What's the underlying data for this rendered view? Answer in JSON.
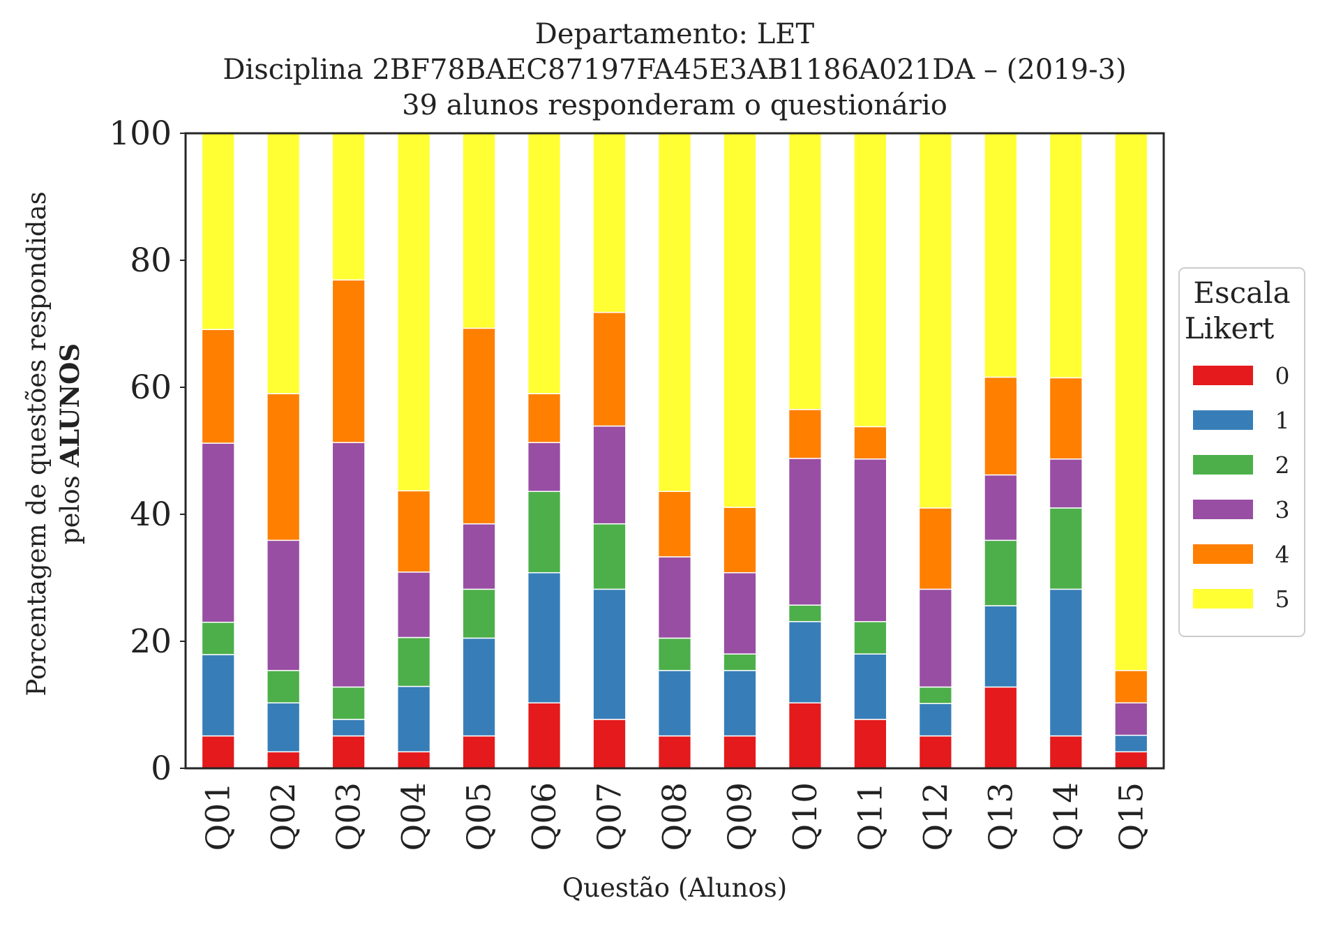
{
  "chart_data": {
    "type": "bar",
    "stacked": true,
    "title_lines": [
      "Departamento: LET",
      "Disciplina 2BF78BAEC87197FA45E3AB1186A021DA – (2019-3)",
      "39 alunos responderam o questionário"
    ],
    "xlabel": "Questão (Alunos)",
    "ylabel_line1": "Porcentagem de questões respondidas",
    "ylabel_line2_prefix": "pelos ",
    "ylabel_line2_bold": "ALUNOS",
    "ylim": [
      0,
      100
    ],
    "yticks": [
      "0",
      "20",
      "40",
      "60",
      "80",
      "100"
    ],
    "grid": false,
    "categories": [
      "Q01",
      "Q02",
      "Q03",
      "Q04",
      "Q05",
      "Q06",
      "Q07",
      "Q08",
      "Q09",
      "Q10",
      "Q11",
      "Q12",
      "Q13",
      "Q14",
      "Q15"
    ],
    "legend": {
      "title_line1": "Escala",
      "title_line2": "Likert",
      "placement": "center-right, outside plot"
    },
    "series": [
      {
        "name": "0",
        "color": "#e41a1c",
        "values": [
          5.1,
          2.6,
          5.1,
          2.6,
          5.1,
          10.3,
          7.7,
          5.1,
          5.1,
          10.3,
          7.7,
          5.1,
          12.8,
          5.1,
          2.6
        ]
      },
      {
        "name": "1",
        "color": "#377eb8",
        "values": [
          12.8,
          7.7,
          2.6,
          10.3,
          15.4,
          20.5,
          20.5,
          10.3,
          10.3,
          12.8,
          10.3,
          5.1,
          12.8,
          23.1,
          2.6
        ]
      },
      {
        "name": "2",
        "color": "#4daf4a",
        "values": [
          5.1,
          5.1,
          5.1,
          7.7,
          7.7,
          12.8,
          10.3,
          5.1,
          2.6,
          2.6,
          5.1,
          2.6,
          10.3,
          12.8,
          0
        ]
      },
      {
        "name": "3",
        "color": "#984ea3",
        "values": [
          28.2,
          20.5,
          38.5,
          10.3,
          10.3,
          7.7,
          15.4,
          12.8,
          12.8,
          23.1,
          25.6,
          15.4,
          10.3,
          7.7,
          5.1
        ]
      },
      {
        "name": "4",
        "color": "#ff7f00",
        "values": [
          17.9,
          23.1,
          25.6,
          12.8,
          30.8,
          7.7,
          17.9,
          10.3,
          10.3,
          7.7,
          5.1,
          12.8,
          15.4,
          12.8,
          5.1
        ]
      },
      {
        "name": "5",
        "color": "#ffff33",
        "values": [
          30.9,
          41.0,
          23.1,
          56.3,
          30.7,
          41.0,
          28.2,
          56.4,
          58.9,
          43.5,
          46.2,
          59.0,
          38.4,
          38.5,
          84.6
        ]
      }
    ]
  }
}
